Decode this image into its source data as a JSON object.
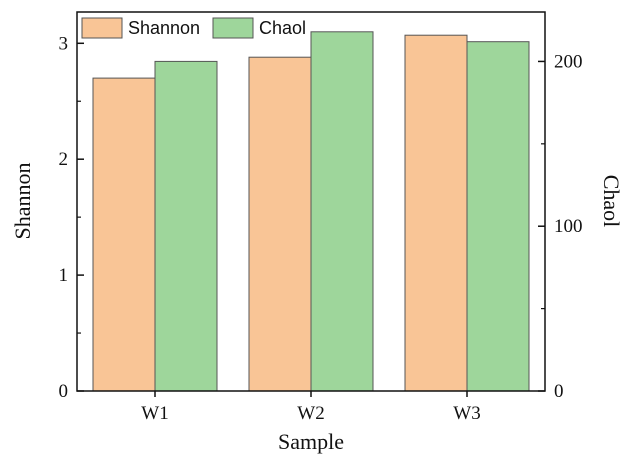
{
  "chart_data": {
    "type": "bar",
    "categories": [
      "W1",
      "W2",
      "W3"
    ],
    "series": [
      {
        "name": "Shannon",
        "axis": "left",
        "color": "#f9c596",
        "values": [
          2.7,
          2.88,
          3.07
        ]
      },
      {
        "name": "Chaol",
        "axis": "right",
        "color": "#9ed69b",
        "values": [
          200,
          218,
          212
        ]
      }
    ],
    "xlabel": "Sample",
    "ylabel_left": "Shannon",
    "ylabel_right": "Chaol",
    "ylim_left": [
      0,
      3.27
    ],
    "ylim_right": [
      0,
      230
    ],
    "yticks_left": [
      0,
      1,
      2,
      3
    ],
    "yticks_right": [
      0,
      100,
      200
    ],
    "grid": false,
    "legend_position": "top-left"
  }
}
